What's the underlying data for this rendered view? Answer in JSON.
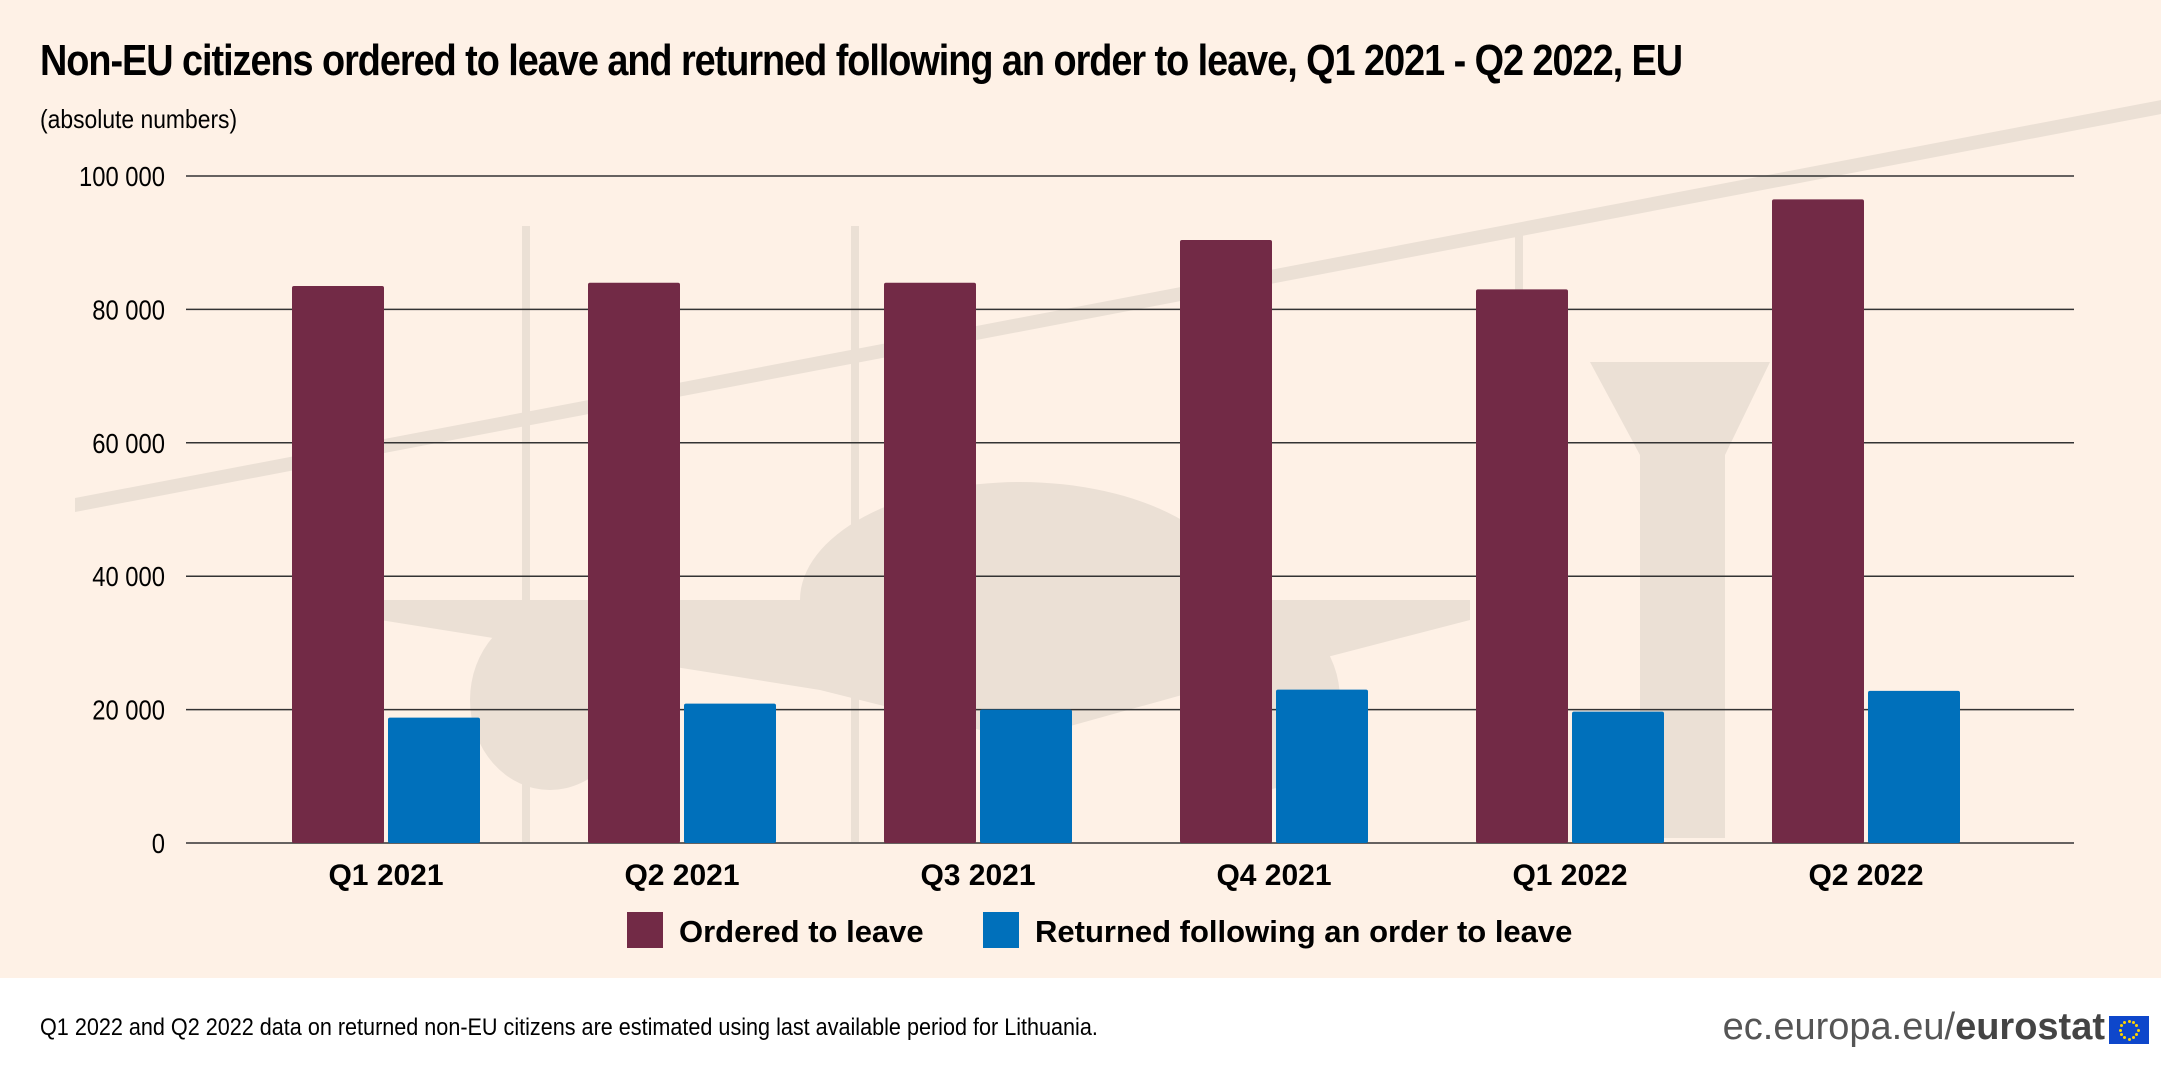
{
  "title": "Non-EU citizens ordered to leave and returned following an order to leave, Q1 2021 - Q2 2022, EU",
  "subtitle": "(absolute numbers)",
  "footer": {
    "note": "Q1 2022 and Q2 2022 data on returned non-EU citizens are estimated using last available period for Lithuania.",
    "brand_prefix": "ec.europa.eu/",
    "brand_name": "eurostat"
  },
  "chart_data": {
    "type": "bar",
    "title": "Non-EU citizens ordered to leave and returned following an order to leave, Q1 2021 - Q2 2022, EU",
    "xlabel": "",
    "ylabel": "absolute numbers",
    "ylim": [
      0,
      100000
    ],
    "yticks": [
      0,
      20000,
      40000,
      60000,
      80000,
      100000
    ],
    "ytick_labels": [
      "0",
      "20 000",
      "40 000",
      "60 000",
      "80 000",
      "100 000"
    ],
    "categories": [
      "Q1 2021",
      "Q2 2021",
      "Q3 2021",
      "Q4 2021",
      "Q1 2022",
      "Q2 2022"
    ],
    "series": [
      {
        "name": "Ordered to leave",
        "color": "#722a46",
        "values": [
          83500,
          84000,
          84000,
          90400,
          83000,
          96500
        ]
      },
      {
        "name": "Returned following an order to leave",
        "color": "#0070bb",
        "values": [
          18800,
          20900,
          20000,
          23000,
          19700,
          22800
        ]
      }
    ],
    "grid": true,
    "legend": "bottom"
  }
}
